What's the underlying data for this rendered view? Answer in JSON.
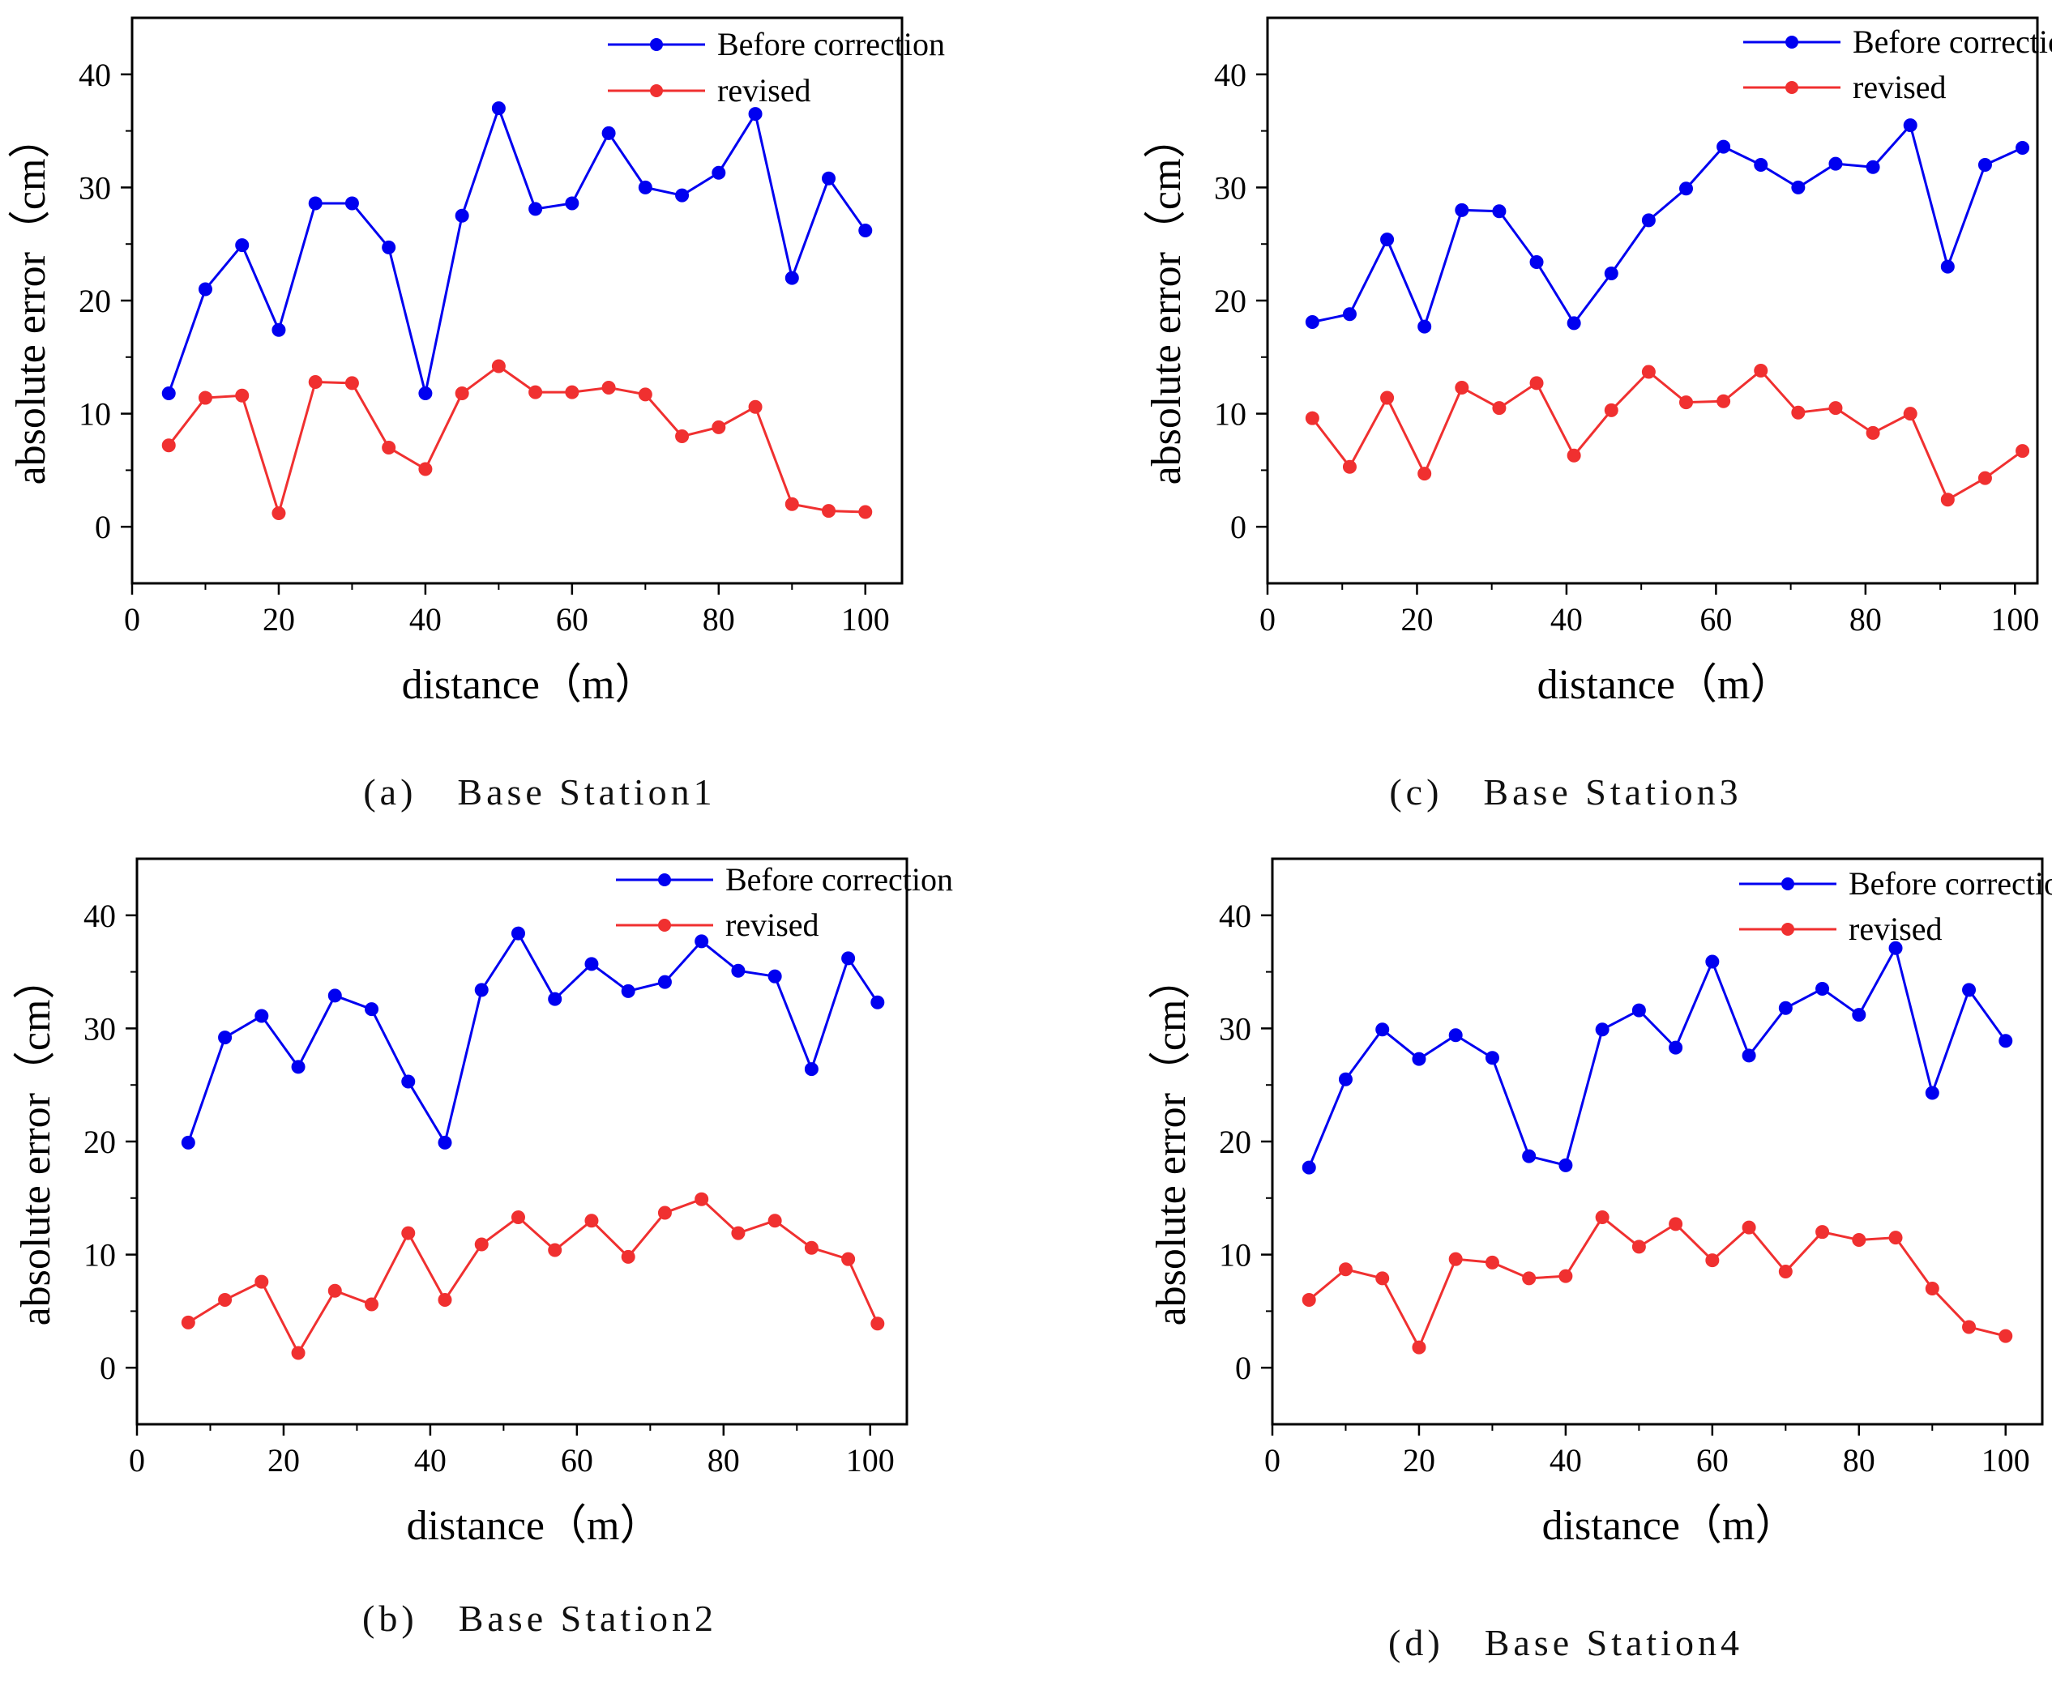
{
  "colors": {
    "before": "#0000f0",
    "revised": "#f03030",
    "axis": "#000000"
  },
  "chart_data": [
    {
      "type": "line",
      "label": "(a)",
      "caption": "Base Station1",
      "xlabel": "distance（m）",
      "ylabel": "absolute error（cm）",
      "xlim": [
        0,
        105
      ],
      "ylim": [
        -5,
        45
      ],
      "xticks": [
        0,
        20,
        40,
        60,
        80,
        100
      ],
      "yticks": [
        0,
        10,
        20,
        30,
        40
      ],
      "legend_position": "top-right",
      "series": [
        {
          "name": "Before correction",
          "color": "#0000f0",
          "x": [
            5,
            10,
            15,
            20,
            25,
            30,
            35,
            40,
            45,
            50,
            55,
            60,
            65,
            70,
            75,
            80,
            85,
            90,
            95,
            100
          ],
          "y": [
            11.8,
            21.0,
            24.9,
            17.4,
            28.6,
            28.6,
            24.7,
            11.8,
            27.5,
            37.0,
            28.1,
            28.6,
            34.8,
            30.0,
            29.3,
            31.3,
            36.5,
            22.0,
            30.8,
            26.2
          ]
        },
        {
          "name": "revised",
          "color": "#f03030",
          "x": [
            5,
            10,
            15,
            20,
            25,
            30,
            35,
            40,
            45,
            50,
            55,
            60,
            65,
            70,
            75,
            80,
            85,
            90,
            95,
            100
          ],
          "y": [
            7.2,
            11.4,
            11.6,
            1.2,
            12.8,
            12.7,
            7.0,
            5.1,
            11.8,
            14.2,
            11.9,
            11.9,
            12.3,
            11.7,
            8.0,
            8.8,
            10.6,
            2.0,
            1.4,
            1.3
          ]
        }
      ]
    },
    {
      "type": "line",
      "label": "(c)",
      "caption": "Base Station3",
      "xlabel": "distance（m）",
      "ylabel": "absolute error（cm）",
      "xlim": [
        0,
        103
      ],
      "ylim": [
        -5,
        45
      ],
      "xticks": [
        0,
        20,
        40,
        60,
        80,
        100
      ],
      "yticks": [
        0,
        10,
        20,
        30,
        40
      ],
      "legend_position": "top-right",
      "series": [
        {
          "name": "Before correction",
          "color": "#0000f0",
          "x": [
            6,
            11,
            16,
            21,
            26,
            31,
            36,
            41,
            46,
            51,
            56,
            61,
            66,
            71,
            76,
            81,
            86,
            91,
            96,
            101
          ],
          "y": [
            18.1,
            18.8,
            25.4,
            17.7,
            28.0,
            27.9,
            23.4,
            18.0,
            22.4,
            27.1,
            29.9,
            33.6,
            32.0,
            30.0,
            32.1,
            31.8,
            35.5,
            23.0,
            32.0,
            33.5
          ]
        },
        {
          "name": "revised",
          "color": "#f03030",
          "x": [
            6,
            11,
            16,
            21,
            26,
            31,
            36,
            41,
            46,
            51,
            56,
            61,
            66,
            71,
            76,
            81,
            86,
            91,
            96,
            101
          ],
          "y": [
            9.6,
            5.3,
            11.4,
            4.7,
            12.3,
            10.5,
            12.7,
            6.3,
            10.3,
            13.7,
            11.0,
            11.1,
            13.8,
            10.1,
            10.5,
            8.3,
            10.0,
            2.4,
            4.3,
            6.7
          ]
        }
      ]
    },
    {
      "type": "line",
      "label": "(b)",
      "caption": "Base Station2",
      "xlabel": "distance（m）",
      "ylabel": "absolute error（cm）",
      "xlim": [
        0,
        105
      ],
      "ylim": [
        -5,
        45
      ],
      "xticks": [
        0,
        20,
        40,
        60,
        80,
        100
      ],
      "yticks": [
        0,
        10,
        20,
        30,
        40
      ],
      "legend_position": "top-right",
      "series": [
        {
          "name": "Before correction",
          "color": "#0000f0",
          "x": [
            7,
            12,
            17,
            22,
            27,
            32,
            37,
            42,
            47,
            52,
            57,
            62,
            67,
            72,
            77,
            82,
            87,
            92,
            97,
            101
          ],
          "y": [
            19.9,
            29.2,
            31.1,
            26.6,
            32.9,
            31.7,
            25.3,
            19.9,
            33.4,
            38.4,
            32.6,
            35.7,
            33.3,
            34.1,
            37.7,
            35.1,
            34.6,
            26.4,
            36.2,
            32.3
          ]
        },
        {
          "name": "revised",
          "color": "#f03030",
          "x": [
            7,
            12,
            17,
            22,
            27,
            32,
            37,
            42,
            47,
            52,
            57,
            62,
            67,
            72,
            77,
            82,
            87,
            92,
            97,
            101
          ],
          "y": [
            4.0,
            6.0,
            7.6,
            1.3,
            6.8,
            5.6,
            11.9,
            6.0,
            10.9,
            13.3,
            10.4,
            13.0,
            9.8,
            13.7,
            14.9,
            11.9,
            13.0,
            10.6,
            9.6,
            3.9
          ]
        }
      ]
    },
    {
      "type": "line",
      "label": "(d)",
      "caption": "Base Station4",
      "xlabel": "distance（m）",
      "ylabel": "absolute error（cm）",
      "xlim": [
        0,
        105
      ],
      "ylim": [
        -5,
        45
      ],
      "xticks": [
        0,
        20,
        40,
        60,
        80,
        100
      ],
      "yticks": [
        0,
        10,
        20,
        30,
        40
      ],
      "legend_position": "top-right",
      "series": [
        {
          "name": "Before correction",
          "color": "#0000f0",
          "x": [
            5,
            10,
            15,
            20,
            25,
            30,
            35,
            40,
            45,
            50,
            55,
            60,
            65,
            70,
            75,
            80,
            85,
            90,
            95,
            100
          ],
          "y": [
            17.7,
            25.5,
            29.9,
            27.3,
            29.4,
            27.4,
            18.7,
            17.9,
            29.9,
            31.6,
            28.3,
            35.9,
            27.6,
            31.8,
            33.5,
            31.2,
            37.1,
            24.3,
            33.4,
            28.9
          ]
        },
        {
          "name": "revised",
          "color": "#f03030",
          "x": [
            5,
            10,
            15,
            20,
            25,
            30,
            35,
            40,
            45,
            50,
            55,
            60,
            65,
            70,
            75,
            80,
            85,
            90,
            95,
            100
          ],
          "y": [
            6.0,
            8.7,
            7.9,
            1.8,
            9.6,
            9.3,
            7.9,
            8.1,
            13.3,
            10.7,
            12.7,
            9.5,
            12.4,
            8.5,
            12.0,
            11.3,
            11.5,
            7.0,
            3.6,
            2.8
          ]
        }
      ]
    }
  ]
}
